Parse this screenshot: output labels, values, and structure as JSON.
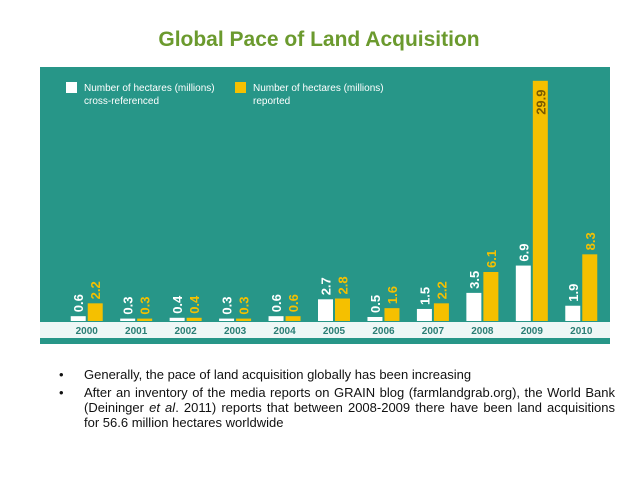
{
  "slide": {
    "title": "Global Pace of Land Acquisition",
    "bullets": [
      {
        "text": "Generally, the pace of land acquisition globally has been increasing"
      },
      {
        "prefix": "After an inventory of the media reports on GRAIN blog (farmlandgrab.org), the World Bank (Deininger ",
        "italic": "et al",
        "suffix": ". 2011) reports that between 2008-2009 there have been land acquisitions for 56.6 million hectares worldwide"
      }
    ]
  },
  "chart_data": {
    "type": "bar",
    "categories": [
      "2000",
      "2001",
      "2002",
      "2003",
      "2004",
      "2005",
      "2006",
      "2007",
      "2008",
      "2009",
      "2010"
    ],
    "series": [
      {
        "name": "Number of hectares (millions) cross-referenced",
        "color": "#ffffff",
        "values": [
          0.6,
          0.3,
          0.4,
          0.3,
          0.6,
          2.7,
          0.5,
          1.5,
          3.5,
          6.9,
          1.9
        ]
      },
      {
        "name": "Number of hectares (millions) reported",
        "color": "#f5c000",
        "values": [
          2.2,
          0.3,
          0.4,
          0.3,
          0.6,
          2.8,
          1.6,
          2.2,
          6.1,
          29.9,
          8.3
        ]
      }
    ],
    "legend": [
      [
        "Number of hectares (millions)",
        "cross-referenced"
      ],
      [
        "Number of hectares (millions)",
        "reported"
      ]
    ],
    "legend_position": "top-left",
    "background_color": "#279688",
    "grid": false,
    "ylim": [
      0,
      30
    ]
  }
}
